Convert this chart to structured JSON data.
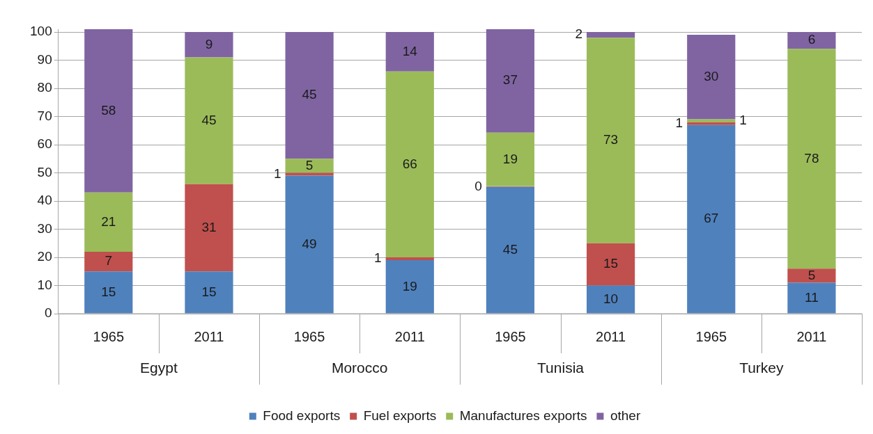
{
  "chart_data": {
    "type": "bar",
    "stacked": true,
    "categories": [
      "1965",
      "2011",
      "1965",
      "2011",
      "1965",
      "2011",
      "1965",
      "2011"
    ],
    "annotations": [
      "Egypt",
      "Morocco",
      "Tunisia",
      "Turkey"
    ],
    "series": [
      {
        "name": "Food exports",
        "color": "#4f81bd",
        "values": [
          15,
          15,
          49,
          19,
          45,
          10,
          67,
          11
        ]
      },
      {
        "name": "Fuel exports",
        "color": "#c0504d",
        "values": [
          7,
          31,
          1,
          1,
          0,
          15,
          1,
          5
        ]
      },
      {
        "name": "Manufactures exports",
        "color": "#9bbb59",
        "values": [
          21,
          45,
          5,
          66,
          19,
          73,
          1,
          78
        ]
      },
      {
        "name": "other",
        "color": "#8064a2",
        "values": [
          58,
          9,
          45,
          14,
          37,
          2,
          30,
          6
        ]
      }
    ],
    "ylim": [
      0,
      101
    ],
    "yticks": [
      0,
      10,
      20,
      30,
      40,
      50,
      60,
      70,
      80,
      90,
      100
    ],
    "grid": "y",
    "legend": "bottom",
    "data_labels": true
  }
}
